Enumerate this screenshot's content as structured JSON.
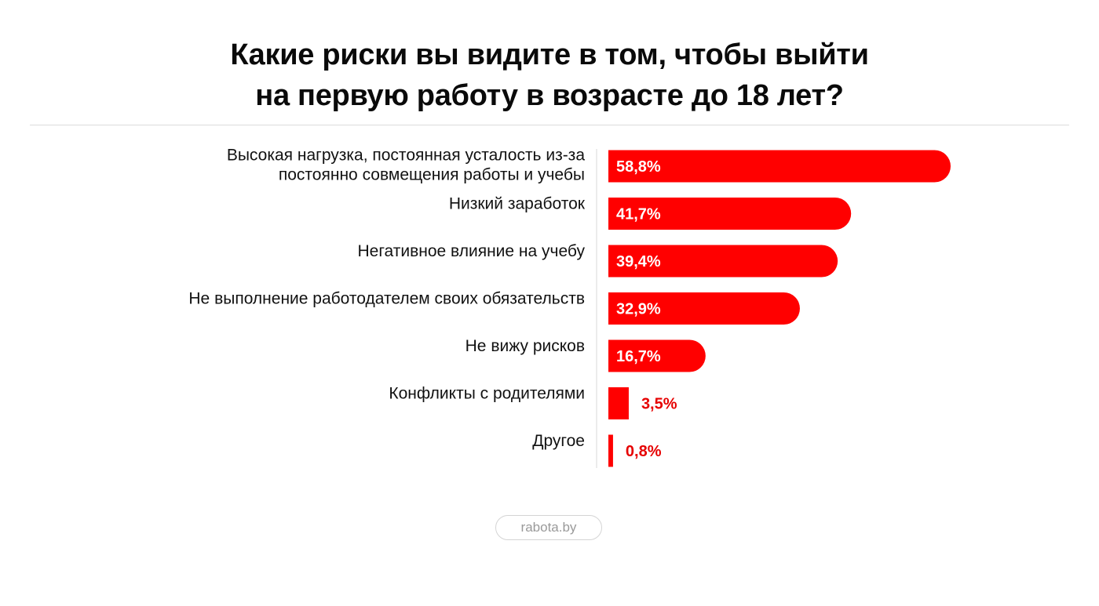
{
  "title": {
    "line1": "Какие риски вы видите в том, чтобы выйти",
    "line2": "на первую работу в возрасте до 18 лет?"
  },
  "source": "rabota.by",
  "colors": {
    "bar": "#ff0000",
    "value_inside": "#ffffff",
    "value_outside": "#e60000",
    "axis": "#d9d9d9"
  },
  "chart_data": {
    "type": "bar",
    "orientation": "horizontal",
    "title": "Какие риски вы видите в том, чтобы выйти на первую работу в возрасте до 18 лет?",
    "categories": [
      [
        "Высокая нагрузка, постоянная усталость из-за",
        "постоянно совмещения работы и учебы"
      ],
      [
        "Низкий заработок"
      ],
      [
        "Негативное влияние на учебу"
      ],
      [
        "Не выполнение работодателем своих обязательств"
      ],
      [
        "Не вижу рисков"
      ],
      [
        "Конфликты с родителями"
      ],
      [
        "Другое"
      ]
    ],
    "values": [
      58.8,
      41.7,
      39.4,
      32.9,
      16.7,
      3.5,
      0.8
    ],
    "value_labels": [
      "58,8%",
      "41,7%",
      "39,4%",
      "32,9%",
      "16,7%",
      "3,5%",
      "0,8%"
    ],
    "unit": "%",
    "xlim": [
      0,
      58.8
    ],
    "grid": false,
    "legend": "none"
  }
}
